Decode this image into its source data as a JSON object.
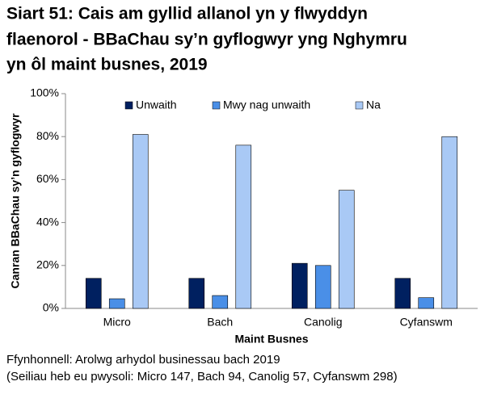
{
  "chart_data": {
    "type": "bar",
    "title": [
      "Siart 51: Cais am gyllid allanol yn y flwyddyn",
      "flaenorol - BBaChau sy’n gyflogwyr yng Nghymru",
      "yn ôl maint busnes, 2019"
    ],
    "y_label": "Canran BBaChau sy’n gyflogwyr",
    "x_label": "Maint Busnes",
    "categories": [
      "Micro",
      "Bach",
      "Canolig",
      "Cyfanswm"
    ],
    "series": [
      {
        "name": "Unwaith",
        "color": "#002060",
        "values": [
          14,
          14,
          21,
          14
        ]
      },
      {
        "name": "Mwy nag unwaith",
        "color": "#4a8fe7",
        "values": [
          4.5,
          6,
          20,
          5
        ]
      },
      {
        "name": "Na",
        "color": "#a9c9f5",
        "values": [
          81,
          76,
          55,
          80
        ]
      }
    ],
    "ylim": [
      0,
      100
    ],
    "yticks": [
      {
        "value": 0,
        "label": "0%"
      },
      {
        "value": 20,
        "label": "20%"
      },
      {
        "value": 40,
        "label": "40%"
      },
      {
        "value": 60,
        "label": "60%"
      },
      {
        "value": 80,
        "label": "80%"
      },
      {
        "value": 100,
        "label": "100%"
      }
    ],
    "grid": false,
    "legend": "top",
    "notes": [
      "Ffynhonnell: Arolwg arhydol businessau bach 2019",
      "(Seiliau heb eu pwysoli: Micro 147, Bach 94, Canolig 57, Cyfanswm 298)"
    ]
  }
}
